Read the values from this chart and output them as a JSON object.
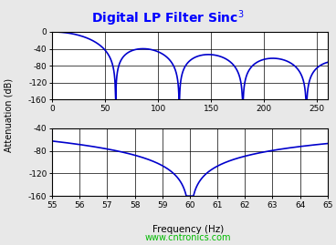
{
  "title": "Digital LP Filter Sinc$^3$",
  "title_color": "#0000FF",
  "title_fontsize": 10,
  "ylabel": "Attenuation (dB)",
  "xlabel": "Frequency (Hz)",
  "background_color": "#e8e8e8",
  "axes_bg": "#ffffff",
  "line_color": "#0000CC",
  "line_width": 1.2,
  "top_plot": {
    "xlim": [
      0,
      260
    ],
    "ylim": [
      -160,
      0
    ],
    "xticks": [
      0,
      50,
      100,
      150,
      200,
      250
    ],
    "yticks": [
      -160,
      -120,
      -80,
      -40,
      0
    ],
    "fs": 60
  },
  "bottom_plot": {
    "xlim": [
      55,
      65
    ],
    "ylim": [
      -160,
      -40
    ],
    "xticks": [
      55,
      56,
      57,
      58,
      59,
      60,
      61,
      62,
      63,
      64,
      65
    ],
    "yticks": [
      -160,
      -120,
      -80,
      -40
    ],
    "fs": 60
  },
  "watermark": "www.cntronics.com",
  "watermark_color": "#00BB00",
  "watermark_fontsize": 7
}
